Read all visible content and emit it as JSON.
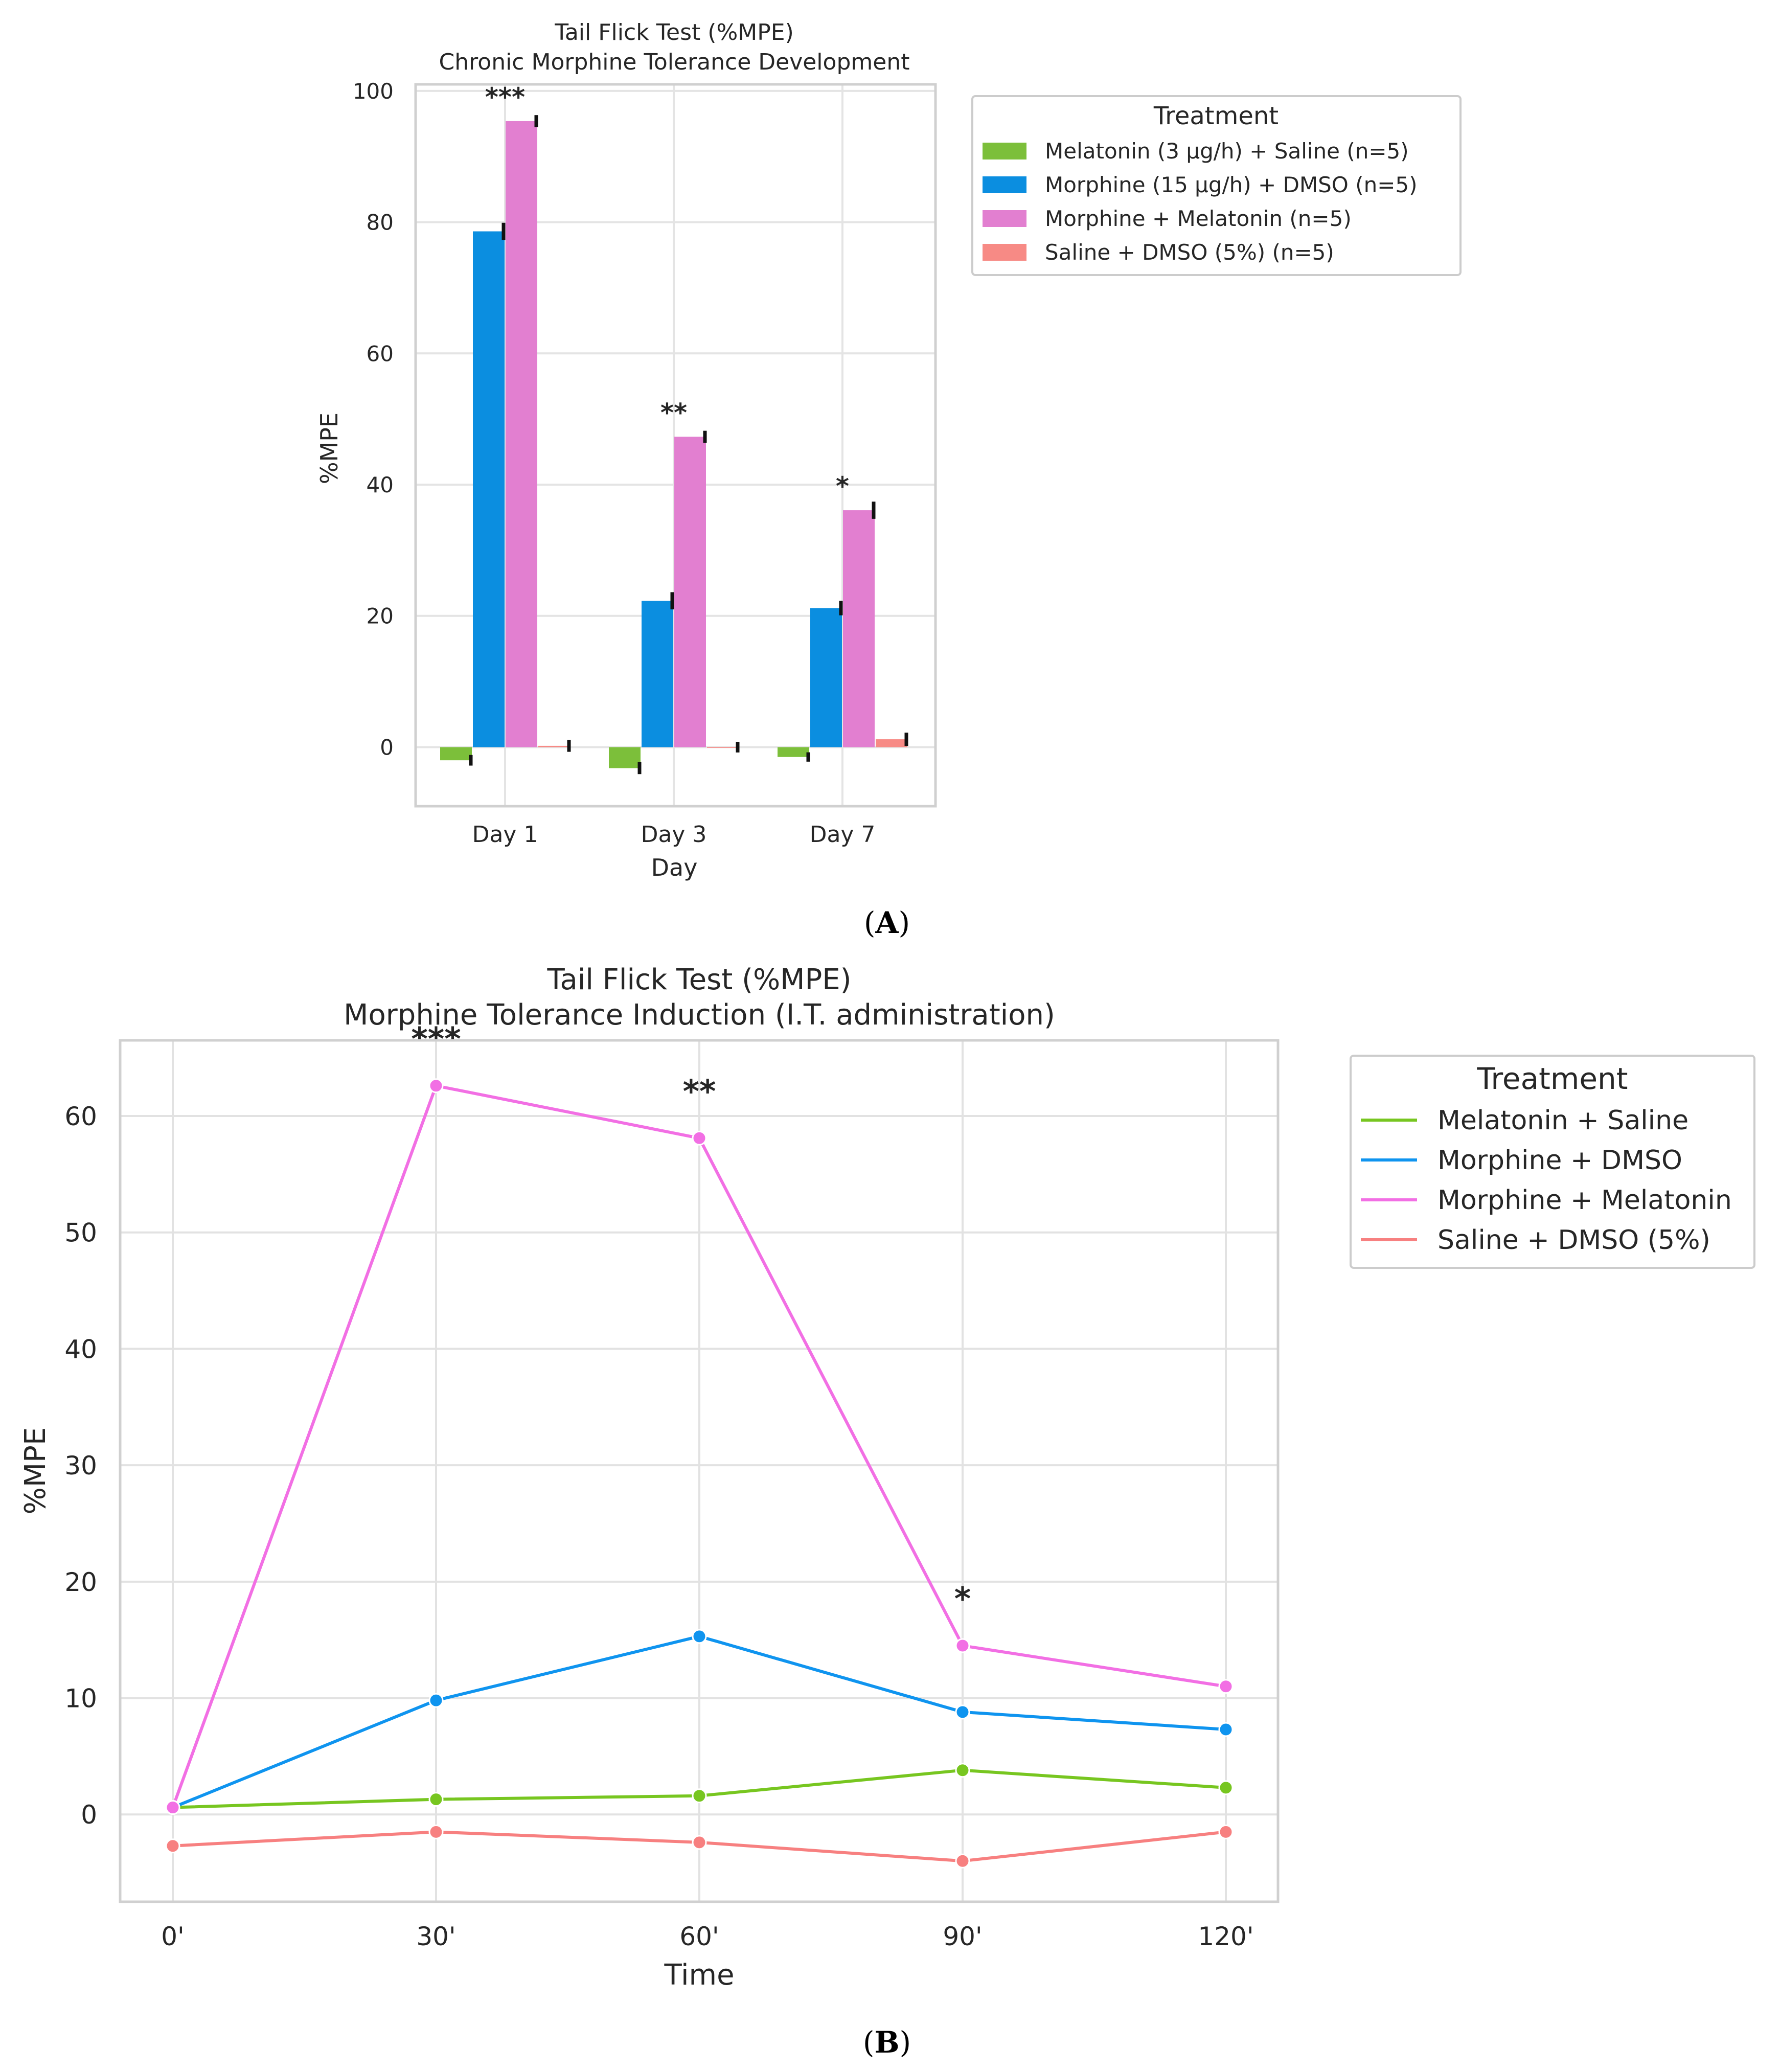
{
  "panel_labels": {
    "a": "A",
    "b": "B"
  },
  "chart_data": [
    {
      "type": "bar",
      "title": "Tail Flick Test (%MPE)",
      "subtitle": "Chronic Morphine Tolerance Development",
      "xlabel": "Day",
      "ylabel": "%MPE",
      "categories": [
        "Day 1",
        "Day 3",
        "Day 7"
      ],
      "ylim": [
        -9,
        101
      ],
      "yticks": [
        0,
        20,
        40,
        60,
        80,
        100
      ],
      "grid": true,
      "legend_title": "Treatment",
      "legend_position": "outside-top-right",
      "series": [
        {
          "name": "Melatonin (3 μg/h) + Saline (n=5)",
          "color": "#7cbf3a",
          "values": [
            -2.0,
            -3.2,
            -1.5
          ],
          "errors": [
            0.5,
            0.6,
            0.4
          ]
        },
        {
          "name": "Morphine (15 μg/h) + DMSO (n=5)",
          "color": "#0b8ee0",
          "values": [
            78.6,
            22.3,
            21.2
          ],
          "errors": [
            1.0,
            1.0,
            0.8
          ]
        },
        {
          "name": "Morphine + Melatonin (n=5)",
          "color": "#e27fd0",
          "values": [
            95.4,
            47.3,
            36.1
          ],
          "errors": [
            0.6,
            0.6,
            1.0
          ]
        },
        {
          "name": "Saline + DMSO (5%) (n=5)",
          "color": "#f78a85",
          "values": [
            0.2,
            0.0,
            1.2
          ],
          "errors": [
            0.6,
            0.5,
            0.7
          ]
        }
      ],
      "annotations": [
        {
          "category": "Day 1",
          "text": "***"
        },
        {
          "category": "Day 3",
          "text": "**"
        },
        {
          "category": "Day 7",
          "text": "*"
        }
      ]
    },
    {
      "type": "line",
      "title": "Tail Flick Test (%MPE)",
      "subtitle": "Morphine Tolerance Induction (I.T. administration)",
      "xlabel": "Time",
      "ylabel": "%MPE",
      "categories": [
        "0'",
        "30'",
        "60'",
        "90'",
        "120'"
      ],
      "ylim": [
        -7.5,
        66.5
      ],
      "yticks": [
        0,
        10,
        20,
        30,
        40,
        50,
        60
      ],
      "grid": true,
      "legend_title": "Treatment",
      "legend_position": "outside-top-right",
      "series": [
        {
          "name": "Melatonin + Saline",
          "color": "#77c620",
          "values": [
            0.6,
            1.3,
            1.6,
            3.8,
            2.3
          ]
        },
        {
          "name": "Morphine + DMSO",
          "color": "#0f94ef",
          "values": [
            0.6,
            9.8,
            15.3,
            8.8,
            7.3
          ]
        },
        {
          "name": "Morphine + Melatonin",
          "color": "#f26fe4",
          "values": [
            0.6,
            62.6,
            58.1,
            14.5,
            11.0
          ]
        },
        {
          "name": "Saline + DMSO (5%)",
          "color": "#f78080",
          "values": [
            -2.7,
            -1.5,
            -2.4,
            -4.0,
            -1.5
          ]
        }
      ],
      "annotations": [
        {
          "category": "30'",
          "text": "***"
        },
        {
          "category": "60'",
          "text": "**"
        },
        {
          "category": "90'",
          "text": "*"
        }
      ]
    }
  ]
}
